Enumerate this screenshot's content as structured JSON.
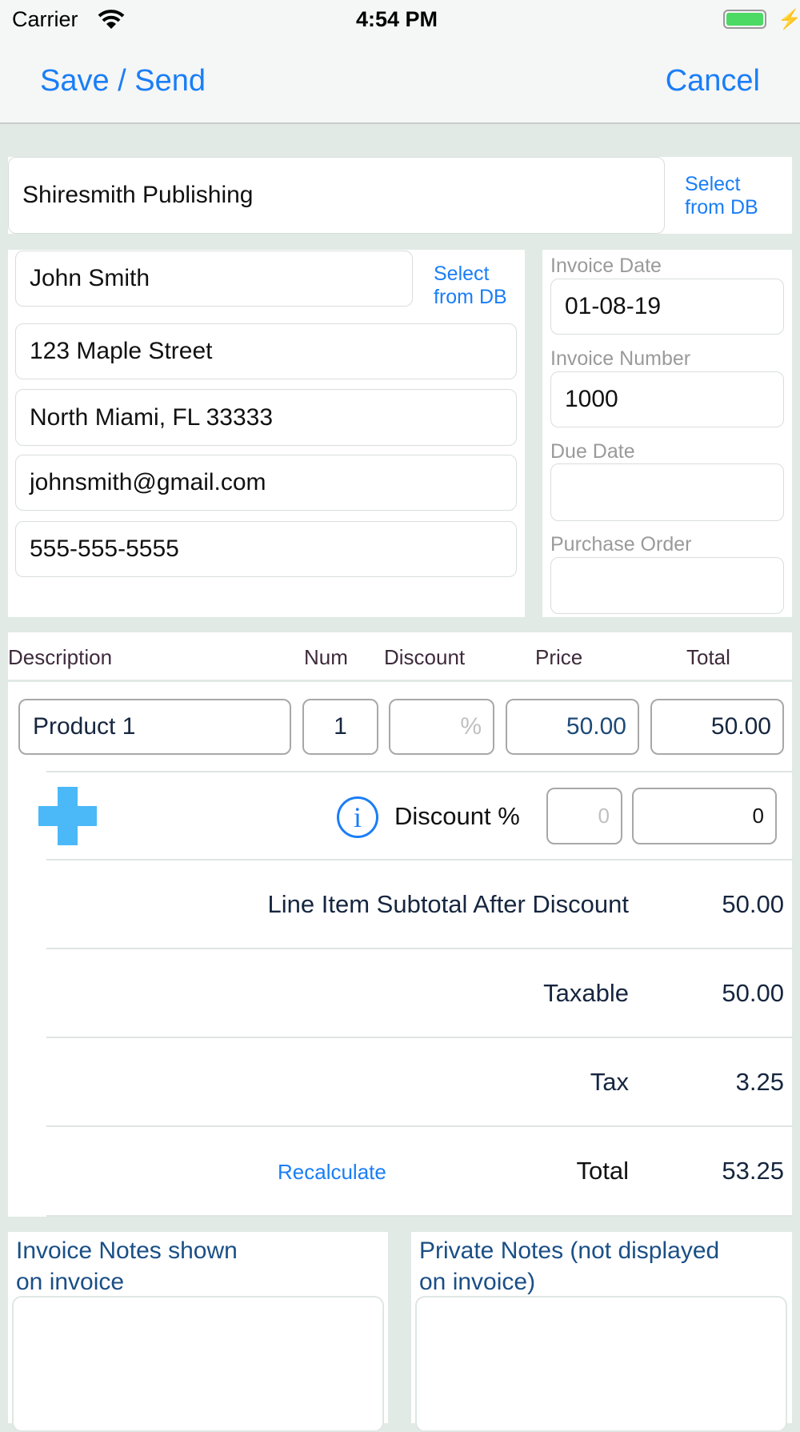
{
  "status_bar": {
    "carrier": "Carrier",
    "time": "4:54 PM",
    "battery_color": "#4cd964"
  },
  "nav": {
    "save_label": "Save / Send",
    "cancel_label": "Cancel"
  },
  "company": {
    "value": "Shiresmith Publishing",
    "select_label_1": "Select",
    "select_label_2": "from DB"
  },
  "contact": {
    "name": "John Smith",
    "select_label_1": "Select",
    "select_label_2": "from DB",
    "street": "123 Maple Street",
    "city": "North Miami, FL  33333",
    "email": "johnsmith@gmail.com",
    "phone": "555-555-5555"
  },
  "invoice_info": {
    "date_label": "Invoice Date",
    "date": "01-08-19",
    "number_label": "Invoice Number",
    "number": "1000",
    "due_label": "Due Date",
    "due": "",
    "po_label": "Purchase Order",
    "po": ""
  },
  "items": {
    "headers": {
      "description": "Description",
      "num": "Num",
      "discount": "Discount",
      "price": "Price",
      "total": "Total"
    },
    "rows": [
      {
        "description": "Product 1",
        "num": "1",
        "discount_placeholder": "%",
        "price": "50.00",
        "total": "50.00"
      }
    ]
  },
  "discount": {
    "label": "Discount %",
    "percent_placeholder": "0",
    "amount": "0"
  },
  "summary": {
    "subtotal_label": "Line Item Subtotal After Discount",
    "subtotal": "50.00",
    "taxable_label": "Taxable",
    "taxable": "50.00",
    "tax_label": "Tax",
    "tax": "3.25",
    "total_label": "Total",
    "total": "53.25",
    "recalculate_label": "Recalculate"
  },
  "notes": {
    "invoice_label_1": "Invoice Notes shown",
    "invoice_label_2": "on invoice",
    "private_label_1": "Private Notes (not displayed",
    "private_label_2": "on invoice)"
  },
  "colors": {
    "accent": "#1a7ef7",
    "add": "#4bb8f8",
    "background": "#e1eae5"
  }
}
